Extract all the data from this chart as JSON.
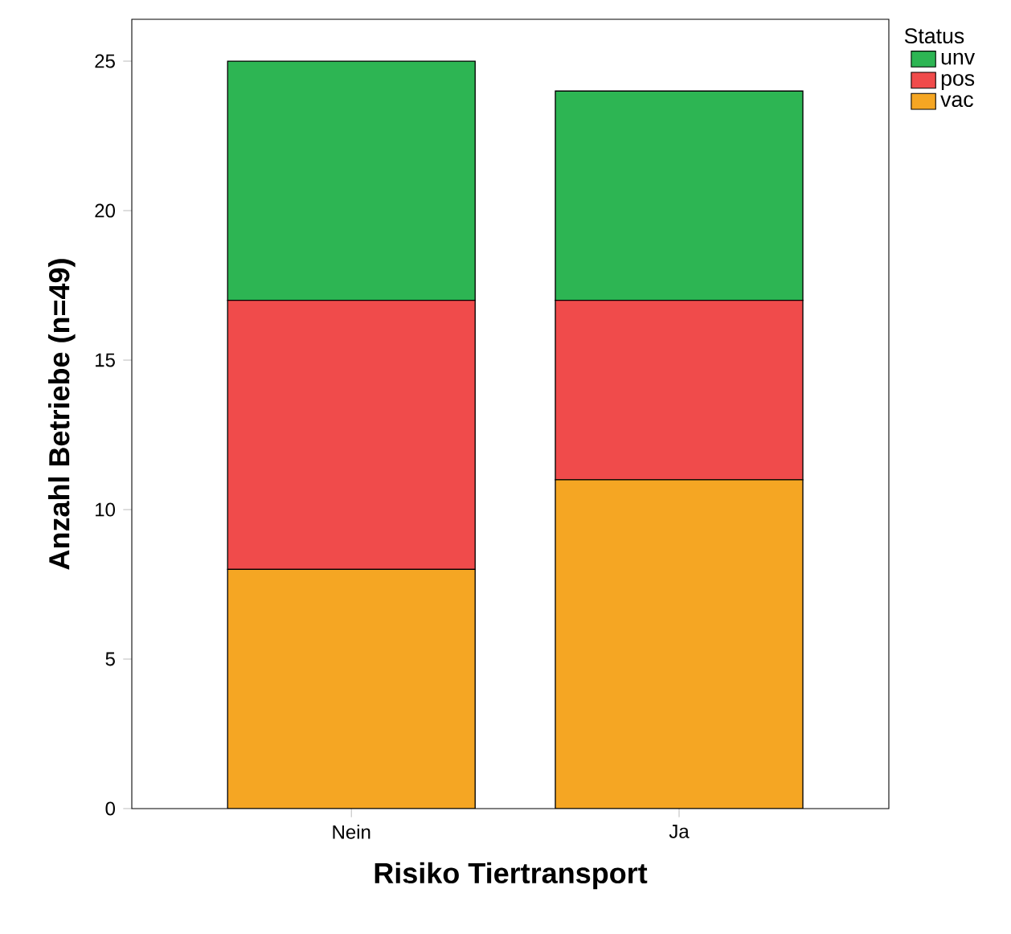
{
  "chart_data": {
    "type": "bar",
    "stacked": true,
    "xlabel": "Risiko Tiertransport",
    "ylabel": "Anzahl Betriebe (n=49)",
    "legend_title": "Status",
    "categories": [
      "Nein",
      "Ja"
    ],
    "series": [
      {
        "name": "vac",
        "color": "#f5a623",
        "values": [
          8,
          11
        ]
      },
      {
        "name": "pos",
        "color": "#f04b4b",
        "values": [
          9,
          6
        ]
      },
      {
        "name": "unv",
        "color": "#2db553",
        "values": [
          8,
          7
        ]
      }
    ],
    "ylim": [
      0,
      26.4
    ],
    "yticks": [
      0,
      5,
      10,
      15,
      20,
      25
    ],
    "grid": false,
    "legend": "top right"
  }
}
